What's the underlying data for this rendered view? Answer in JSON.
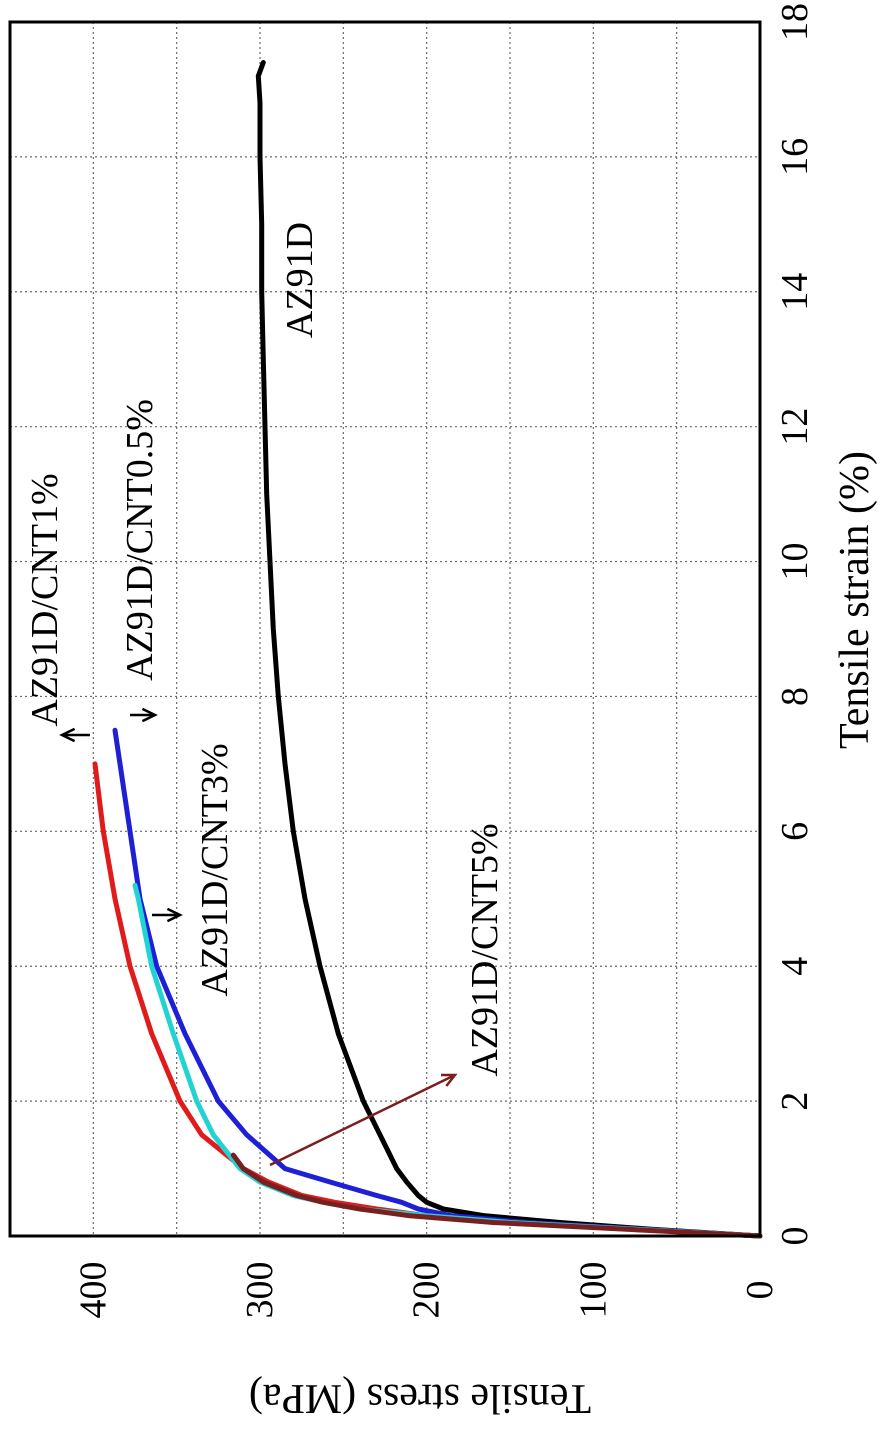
{
  "chart_data": {
    "type": "line",
    "orientation": "rotated-90-clockwise",
    "xlabel": "Tensile strain (%)",
    "ylabel": "Tensile stress (MPa)",
    "xlim": [
      0,
      18
    ],
    "ylim": [
      0,
      450
    ],
    "x_ticks": [
      "0",
      "2",
      "4",
      "6",
      "8",
      "10",
      "12",
      "14",
      "16",
      "18"
    ],
    "y_ticks": [
      "0",
      "100",
      "200",
      "300",
      "400"
    ],
    "grid": true,
    "series": [
      {
        "name": "AZ91D",
        "color": "#000000",
        "x": [
          0,
          0.1,
          0.2,
          0.3,
          0.4,
          0.5,
          0.6,
          0.8,
          1.0,
          1.5,
          2.0,
          3.0,
          4.0,
          5.0,
          6.0,
          7.0,
          8.0,
          9.0,
          10.0,
          11.0,
          12.0,
          13.0,
          14.0,
          15.0,
          16.0,
          16.8,
          17.2,
          17.4
        ],
        "y": [
          0,
          65,
          120,
          165,
          190,
          200,
          205,
          212,
          218,
          228,
          238,
          253,
          264,
          273,
          280,
          285,
          289,
          292,
          294,
          296,
          297,
          298,
          299,
          299,
          300,
          300,
          301,
          298
        ]
      },
      {
        "name": "AZ91D/CNT0.5%",
        "color": "#1f1fd6",
        "x": [
          0,
          0.1,
          0.2,
          0.3,
          0.4,
          0.5,
          0.6,
          0.8,
          1.0,
          1.5,
          2.0,
          3.0,
          4.0,
          5.0,
          6.0,
          7.0,
          7.5
        ],
        "y": [
          0,
          70,
          140,
          185,
          205,
          215,
          230,
          258,
          285,
          308,
          325,
          345,
          362,
          372,
          378,
          384,
          387
        ]
      },
      {
        "name": "AZ91D/CNT1%",
        "color": "#e01b1b",
        "x": [
          0,
          0.1,
          0.2,
          0.3,
          0.4,
          0.5,
          0.6,
          0.8,
          1.0,
          1.5,
          2.0,
          3.0,
          4.0,
          5.0,
          6.0,
          7.0
        ],
        "y": [
          0,
          75,
          150,
          200,
          230,
          255,
          275,
          295,
          310,
          335,
          348,
          365,
          378,
          387,
          394,
          399
        ]
      },
      {
        "name": "AZ91D/CNT3%",
        "color": "#22d3d3",
        "x": [
          0,
          0.1,
          0.2,
          0.3,
          0.4,
          0.5,
          0.6,
          0.8,
          1.0,
          1.5,
          2.0,
          3.0,
          4.0,
          5.0,
          5.2
        ],
        "y": [
          0,
          75,
          150,
          200,
          240,
          262,
          280,
          300,
          312,
          328,
          338,
          352,
          365,
          373,
          375
        ]
      },
      {
        "name": "AZ91D/CNT5%",
        "color": "#7a1f1f",
        "x": [
          0,
          0.1,
          0.2,
          0.3,
          0.4,
          0.5,
          0.6,
          0.8,
          1.0,
          1.2
        ],
        "y": [
          0,
          80,
          160,
          210,
          240,
          262,
          278,
          298,
          310,
          316
        ]
      }
    ],
    "annotations": [
      {
        "text": "AZ91D",
        "series": "AZ91D"
      },
      {
        "text": "AZ91D/CNT0.5%",
        "series": "AZ91D/CNT0.5%"
      },
      {
        "text": "AZ91D/CNT1%",
        "series": "AZ91D/CNT1%"
      },
      {
        "text": "AZ91D/CNT3%",
        "series": "AZ91D/CNT3%"
      },
      {
        "text": "AZ91D/CNT5%",
        "series": "AZ91D/CNT5%"
      }
    ]
  }
}
